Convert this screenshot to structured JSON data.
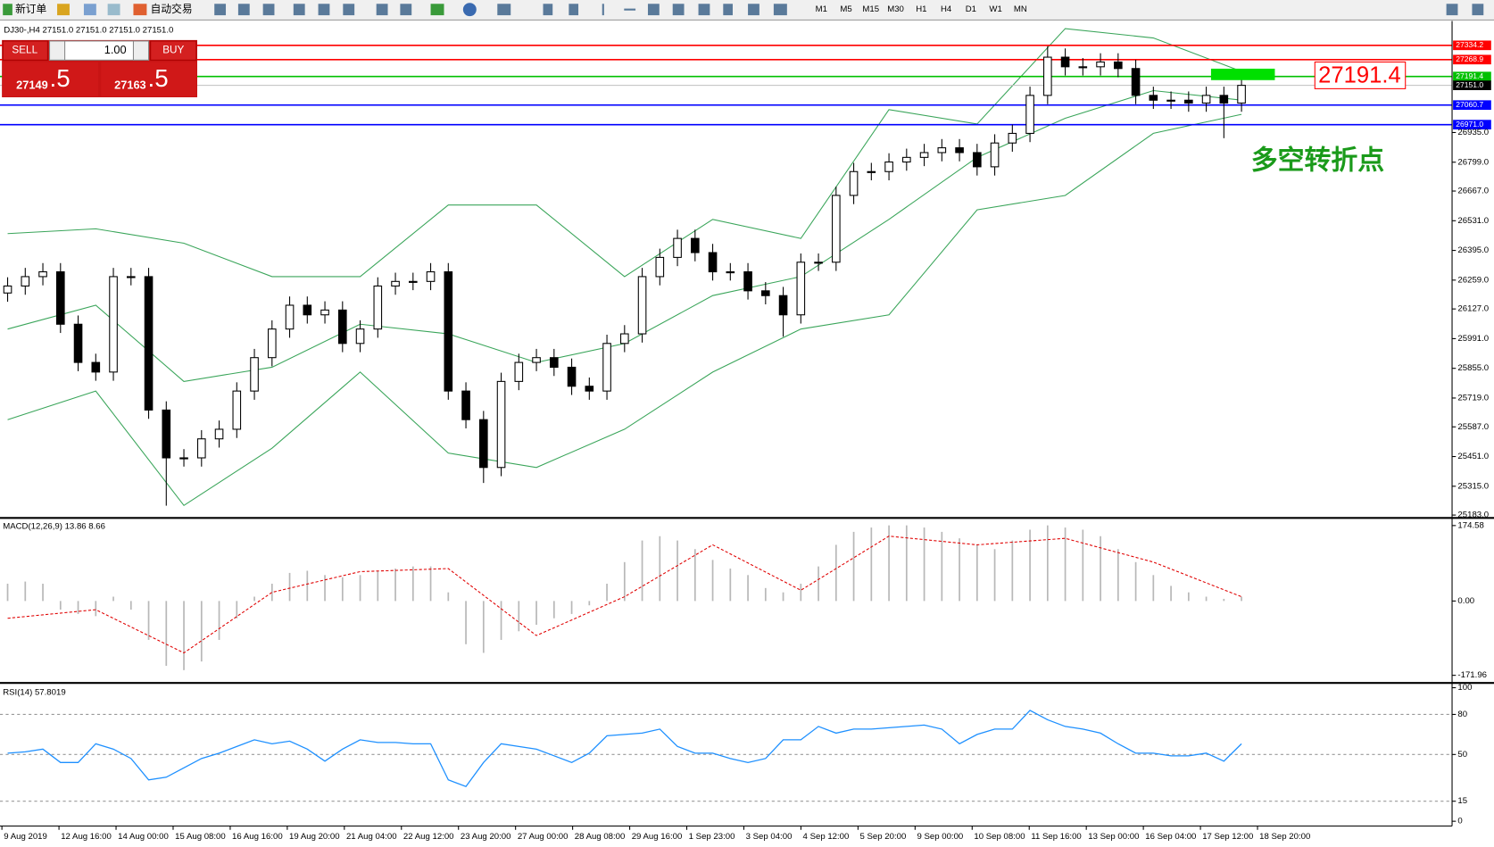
{
  "toolbar": {
    "new_order": "新订单",
    "auto_trade": "自动交易",
    "timeframes": [
      "M1",
      "M5",
      "M15",
      "M30",
      "H1",
      "H4",
      "D1",
      "W1",
      "MN"
    ]
  },
  "trade_panel": {
    "sell": "SELL",
    "buy": "BUY",
    "lot": "1.00",
    "bid_main": "27149",
    "bid_tail": ".5",
    "ask_main": "27163",
    "ask_tail": ".5"
  },
  "chart": {
    "header": "DJ30-,H4  27151.0 27151.0 27151.0 27151.0",
    "ylim": [
      25183,
      27437
    ],
    "yticks": [
      {
        "value": 26935,
        "label": "26935.0"
      },
      {
        "value": 26799,
        "label": "26799.0"
      },
      {
        "value": 26667,
        "label": "26667.0"
      },
      {
        "value": 26531,
        "label": "26531.0"
      },
      {
        "value": 26395,
        "label": "26395.0"
      },
      {
        "value": 26259,
        "label": "26259.0"
      },
      {
        "value": 26127,
        "label": "26127.0"
      },
      {
        "value": 25991,
        "label": "25991.0"
      },
      {
        "value": 25855,
        "label": "25855.0"
      },
      {
        "value": 25719,
        "label": "25719.0"
      },
      {
        "value": 25587,
        "label": "25587.0"
      },
      {
        "value": 25451,
        "label": "25451.0"
      },
      {
        "value": 25315,
        "label": "25315.0"
      },
      {
        "value": 25183,
        "label": "25183.0"
      }
    ],
    "levels": [
      {
        "value": 27334.2,
        "label": "27334.2",
        "color": "#ff0000"
      },
      {
        "value": 27268.9,
        "label": "27268.9",
        "color": "#ff0000"
      },
      {
        "value": 27191.4,
        "label": "27191.4",
        "color": "#00c000"
      },
      {
        "value": 27151,
        "label": "27151.0",
        "color": "#000000"
      },
      {
        "value": 27060.7,
        "label": "27060.7",
        "color": "#0000ff"
      },
      {
        "value": 26971,
        "label": "26971.0",
        "color": "#0000ff"
      }
    ],
    "annotation": "多空转折点",
    "price": {
      "open": [
        26200,
        26232,
        26275,
        26297,
        26057,
        25882,
        25838,
        26275,
        26275,
        25664,
        25445,
        25445,
        25532,
        25576,
        25751,
        25904,
        26035,
        26144,
        26100,
        26122,
        25969,
        26035,
        26232,
        26253,
        26253,
        26297,
        25751,
        25620,
        25401,
        25795,
        25882,
        25904,
        25860,
        25773,
        25751,
        25969,
        26013,
        26275,
        26363,
        26450,
        26385,
        26297,
        26297,
        26210,
        26188,
        26100,
        26341,
        26341,
        26647,
        26756,
        26756,
        26800,
        26821,
        26843,
        26865,
        26843,
        26778,
        26887,
        26931,
        27105,
        27280,
        27236,
        27236,
        27258,
        27228,
        27105,
        27083,
        27083,
        27070,
        27105,
        27070
      ],
      "high": [
        26272,
        26315,
        26337,
        26337,
        26097,
        25922,
        26315,
        26315,
        26315,
        25704,
        25485,
        25572,
        25616,
        25791,
        25944,
        26075,
        26184,
        26184,
        26162,
        26162,
        26075,
        26272,
        26293,
        26293,
        26337,
        26337,
        25791,
        25660,
        25835,
        25922,
        25944,
        25944,
        25900,
        25813,
        26009,
        26053,
        26315,
        26403,
        26490,
        26490,
        26425,
        26337,
        26337,
        26250,
        26228,
        26381,
        26381,
        26687,
        26796,
        26796,
        26840,
        26861,
        26883,
        26905,
        26905,
        26883,
        26927,
        26971,
        27145,
        27330,
        27320,
        27276,
        27298,
        27298,
        27268,
        27145,
        27123,
        27123,
        27145,
        27145,
        27191
      ],
      "low": [
        26160,
        26192,
        26235,
        26017,
        25842,
        25798,
        25798,
        26235,
        25624,
        25226,
        25405,
        25405,
        25492,
        25536,
        25711,
        25864,
        25995,
        26060,
        26060,
        25929,
        25929,
        25995,
        26192,
        26213,
        26213,
        25711,
        25580,
        25330,
        25361,
        25755,
        25842,
        25820,
        25733,
        25711,
        25711,
        25929,
        25973,
        26235,
        26323,
        26345,
        26257,
        26257,
        26170,
        26148,
        26000,
        26060,
        26301,
        26301,
        26607,
        26716,
        26716,
        26760,
        26781,
        26803,
        26803,
        26738,
        26738,
        26847,
        26891,
        27065,
        27196,
        27196,
        27196,
        27188,
        27065,
        27043,
        27043,
        27030,
        27030,
        26909,
        27030
      ],
      "close": [
        26232,
        26275,
        26297,
        26057,
        25882,
        25838,
        26275,
        26275,
        25664,
        25445,
        25445,
        25532,
        25576,
        25751,
        25904,
        26035,
        26144,
        26100,
        26122,
        25969,
        26035,
        26232,
        26253,
        26253,
        26297,
        25751,
        25620,
        25401,
        25795,
        25882,
        25904,
        25860,
        25773,
        25751,
        25969,
        26013,
        26275,
        26363,
        26450,
        26385,
        26297,
        26297,
        26210,
        26188,
        26100,
        26341,
        26341,
        26647,
        26756,
        26756,
        26800,
        26821,
        26843,
        26865,
        26843,
        26778,
        26887,
        26931,
        27105,
        27280,
        27236,
        27236,
        27258,
        27228,
        27105,
        27083,
        27083,
        27070,
        27105,
        27070,
        27151
      ]
    },
    "bands": {
      "color": "#3aa55a",
      "upper": [
        26472,
        26494,
        26428,
        26275,
        26275,
        26603,
        26603,
        26275,
        26537,
        26450,
        27040,
        26974,
        27411,
        27368,
        27215
      ],
      "middle": [
        26035,
        26144,
        25795,
        25860,
        26057,
        26013,
        25882,
        25969,
        26188,
        26275,
        26537,
        26821,
        27000,
        27127,
        27083
      ],
      "lower": [
        25620,
        25751,
        25227,
        25489,
        25838,
        25467,
        25401,
        25576,
        25838,
        26035,
        26100,
        26581,
        26647,
        26931,
        27018
      ]
    }
  },
  "macd": {
    "label": "MACD(12,26,9) 13.86 8.66",
    "ylim": [
      -171.96,
      174.58
    ],
    "yticks": [
      174.58,
      {
        "value": 0,
        "label": "0.00"
      },
      -171.96
    ],
    "histogram": [
      40,
      45,
      40,
      -20,
      -30,
      -35,
      10,
      -20,
      -90,
      -150,
      -160,
      -140,
      -90,
      -40,
      10,
      40,
      65,
      70,
      60,
      55,
      60,
      70,
      75,
      80,
      80,
      20,
      -100,
      -120,
      -90,
      -70,
      -55,
      -40,
      -30,
      -10,
      40,
      90,
      140,
      150,
      140,
      120,
      95,
      75,
      60,
      30,
      20,
      40,
      80,
      130,
      160,
      170,
      175,
      175,
      170,
      160,
      145,
      130,
      120,
      140,
      165,
      175,
      170,
      165,
      150,
      120,
      90,
      60,
      35,
      20,
      10,
      5,
      10
    ],
    "signal": [
      -40,
      -20,
      -120,
      20,
      68,
      75,
      -80,
      10,
      130,
      25,
      150,
      130,
      145,
      90,
      10
    ]
  },
  "rsi": {
    "label": "RSI(14) 57.8019",
    "ylim": [
      0,
      100
    ],
    "yticks": [
      100,
      80,
      50,
      15,
      0
    ],
    "levels": [
      80,
      50,
      15
    ],
    "values": [
      51,
      52,
      54,
      44,
      44,
      58,
      54,
      47,
      31,
      33,
      40,
      47,
      51,
      56,
      61,
      58,
      60,
      54,
      45,
      54,
      61,
      59,
      59,
      58,
      58,
      31,
      26,
      44,
      58,
      56,
      54,
      49,
      44,
      51,
      64,
      65,
      66,
      69,
      56,
      51,
      51,
      47,
      44,
      47,
      61,
      61,
      71,
      66,
      69,
      69,
      70,
      71,
      72,
      69,
      58,
      65,
      69,
      69,
      83,
      76,
      71,
      69,
      66,
      58,
      51,
      51,
      49,
      49,
      51,
      45,
      58
    ]
  },
  "time_labels": [
    "9 Aug 2019",
    "12 Aug 16:00",
    "14 Aug 00:00",
    "15 Aug 08:00",
    "16 Aug 16:00",
    "19 Aug 20:00",
    "21 Aug 04:00",
    "22 Aug 12:00",
    "23 Aug 20:00",
    "27 Aug 00:00",
    "28 Aug 08:00",
    "29 Aug 16:00",
    "1 Sep 23:00",
    "3 Sep 04:00",
    "4 Sep 12:00",
    "5 Sep 20:00",
    "9 Sep 00:00",
    "10 Sep 08:00",
    "11 Sep 16:00",
    "13 Sep 00:00",
    "16 Sep 04:00",
    "17 Sep 12:00",
    "18 Sep 20:00"
  ]
}
